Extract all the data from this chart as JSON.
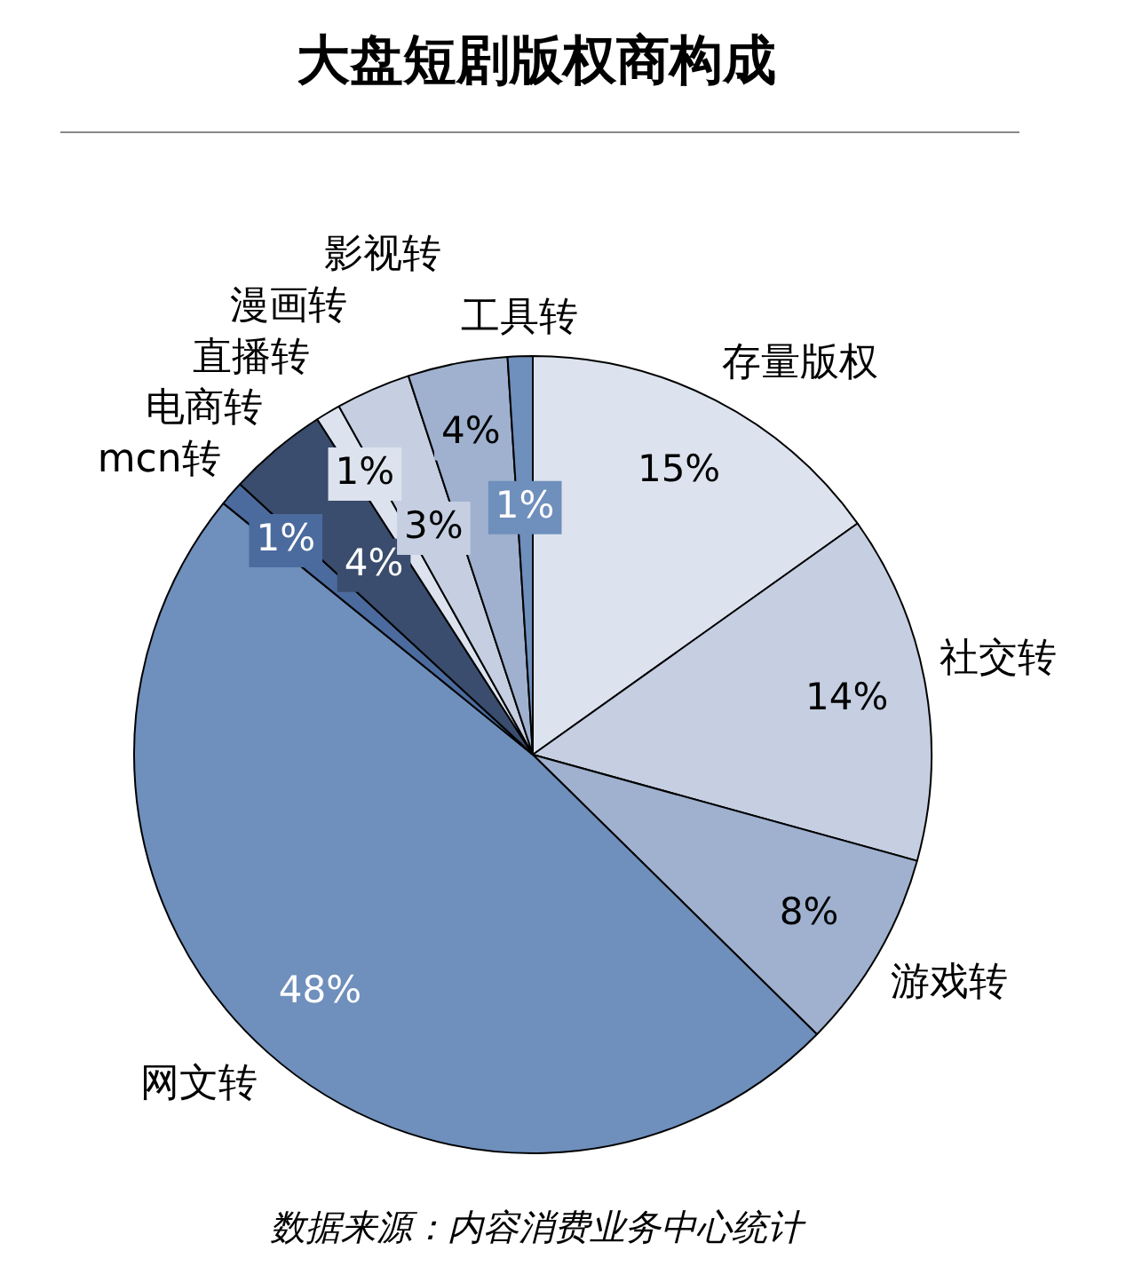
{
  "chart_data": {
    "type": "pie",
    "title": "大盘短剧版权商构成",
    "categories": [
      "存量版权",
      "社交转",
      "游戏转",
      "网文转",
      "mcn转",
      "电商转",
      "直播转",
      "漫画转",
      "影视转",
      "工具转"
    ],
    "values": [
      15,
      14,
      8,
      48,
      1,
      4,
      1,
      3,
      4,
      1
    ],
    "colors": [
      "#dce3ee",
      "#c5cfe1",
      "#9fb1cf",
      "#6f8fbc",
      "#4b6b9e",
      "#3a4d6e",
      "#dce3ee",
      "#c5cfe1",
      "#9fb1cf",
      "#6f8fbc"
    ],
    "value_labels": [
      "15%",
      "14%",
      "8%",
      "48%",
      "1%",
      "4%",
      "1%",
      "3%",
      "4%",
      "1%"
    ],
    "legend": false,
    "annotations": [
      "数据来源：内容消费业务中心统计"
    ]
  }
}
